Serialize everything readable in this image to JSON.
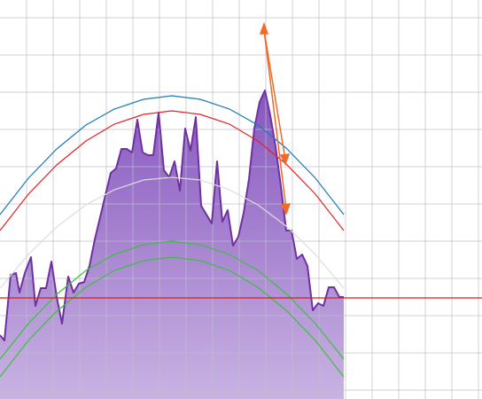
{
  "chart_data": {
    "type": "line",
    "xlim": [
      0,
      544
    ],
    "ylim": [
      0,
      450
    ],
    "xticks": [
      30,
      60,
      90,
      120,
      150,
      180,
      210,
      240,
      270,
      300,
      330,
      360,
      390,
      420,
      450,
      480,
      510,
      540
    ],
    "yticks": [
      430,
      388,
      346,
      304,
      262,
      220,
      178,
      136,
      94,
      52,
      10
    ],
    "grid": true,
    "series": [
      {
        "color": "#7030a0",
        "area": true,
        "x": [
          0,
          5,
          12,
          18,
          22,
          28,
          35,
          40,
          46,
          52,
          58,
          64,
          70,
          77,
          83,
          89,
          95,
          101,
          107,
          113,
          119,
          125,
          131,
          137,
          143,
          149,
          155,
          161,
          167,
          173,
          179,
          185,
          191,
          197,
          203,
          209,
          215,
          221,
          227,
          233,
          239,
          245,
          251,
          257,
          263,
          269,
          275,
          281,
          287,
          293,
          299,
          305,
          311,
          317,
          323,
          329,
          335,
          341,
          347,
          353,
          359,
          365,
          371,
          377,
          383,
          388
        ],
        "values": [
          72,
          66,
          140,
          142,
          120,
          142,
          160,
          105,
          125,
          125,
          155,
          115,
          85,
          138,
          120,
          130,
          132,
          150,
          180,
          205,
          230,
          255,
          260,
          282,
          282,
          278,
          315,
          278,
          275,
          275,
          323,
          258,
          250,
          268,
          235,
          305,
          280,
          318,
          218,
          208,
          198,
          268,
          200,
          213,
          173,
          183,
          210,
          248,
          305,
          335,
          348,
          320,
          285,
          240,
          190,
          190,
          158,
          163,
          150,
          100,
          108,
          105,
          126,
          126,
          115,
          115
        ]
      },
      {
        "color": "#1a7ab8",
        "x": [
          0,
          32,
          64,
          97,
          129,
          162,
          194,
          226,
          259,
          291,
          323,
          356,
          388
        ],
        "values": [
          208,
          249,
          282,
          309,
          327,
          338,
          342,
          338,
          327,
          309,
          283,
          249,
          208
        ]
      },
      {
        "color": "#e82020",
        "x": [
          0,
          32,
          64,
          97,
          129,
          162,
          194,
          226,
          259,
          291,
          323,
          356,
          388
        ],
        "values": [
          190,
          231,
          264,
          291,
          310,
          321,
          325,
          321,
          310,
          291,
          265,
          231,
          190
        ]
      },
      {
        "color": "#dddddd",
        "x": [
          0,
          32,
          64,
          97,
          129,
          162,
          194,
          226,
          259,
          291,
          323,
          356,
          388
        ],
        "values": [
          125,
          163,
          194,
          219,
          236,
          247,
          250,
          247,
          236,
          219,
          195,
          163,
          125
        ]
      },
      {
        "color": "#3cc03c",
        "x": [
          0,
          32,
          64,
          97,
          129,
          162,
          194,
          226,
          259,
          291,
          323,
          356,
          388
        ],
        "values": [
          45,
          85,
          118,
          145,
          163,
          174,
          178,
          174,
          163,
          145,
          119,
          85,
          45
        ]
      },
      {
        "color": "#3cc03c",
        "x": [
          0,
          32,
          64,
          97,
          129,
          162,
          194,
          226,
          259,
          291,
          323,
          356,
          388
        ],
        "values": [
          25,
          66,
          99,
          126,
          145,
          156,
          160,
          156,
          145,
          126,
          100,
          66,
          25
        ]
      },
      {
        "color": "#d02020",
        "x": [
          0,
          544
        ],
        "values": [
          114,
          114
        ]
      }
    ]
  }
}
